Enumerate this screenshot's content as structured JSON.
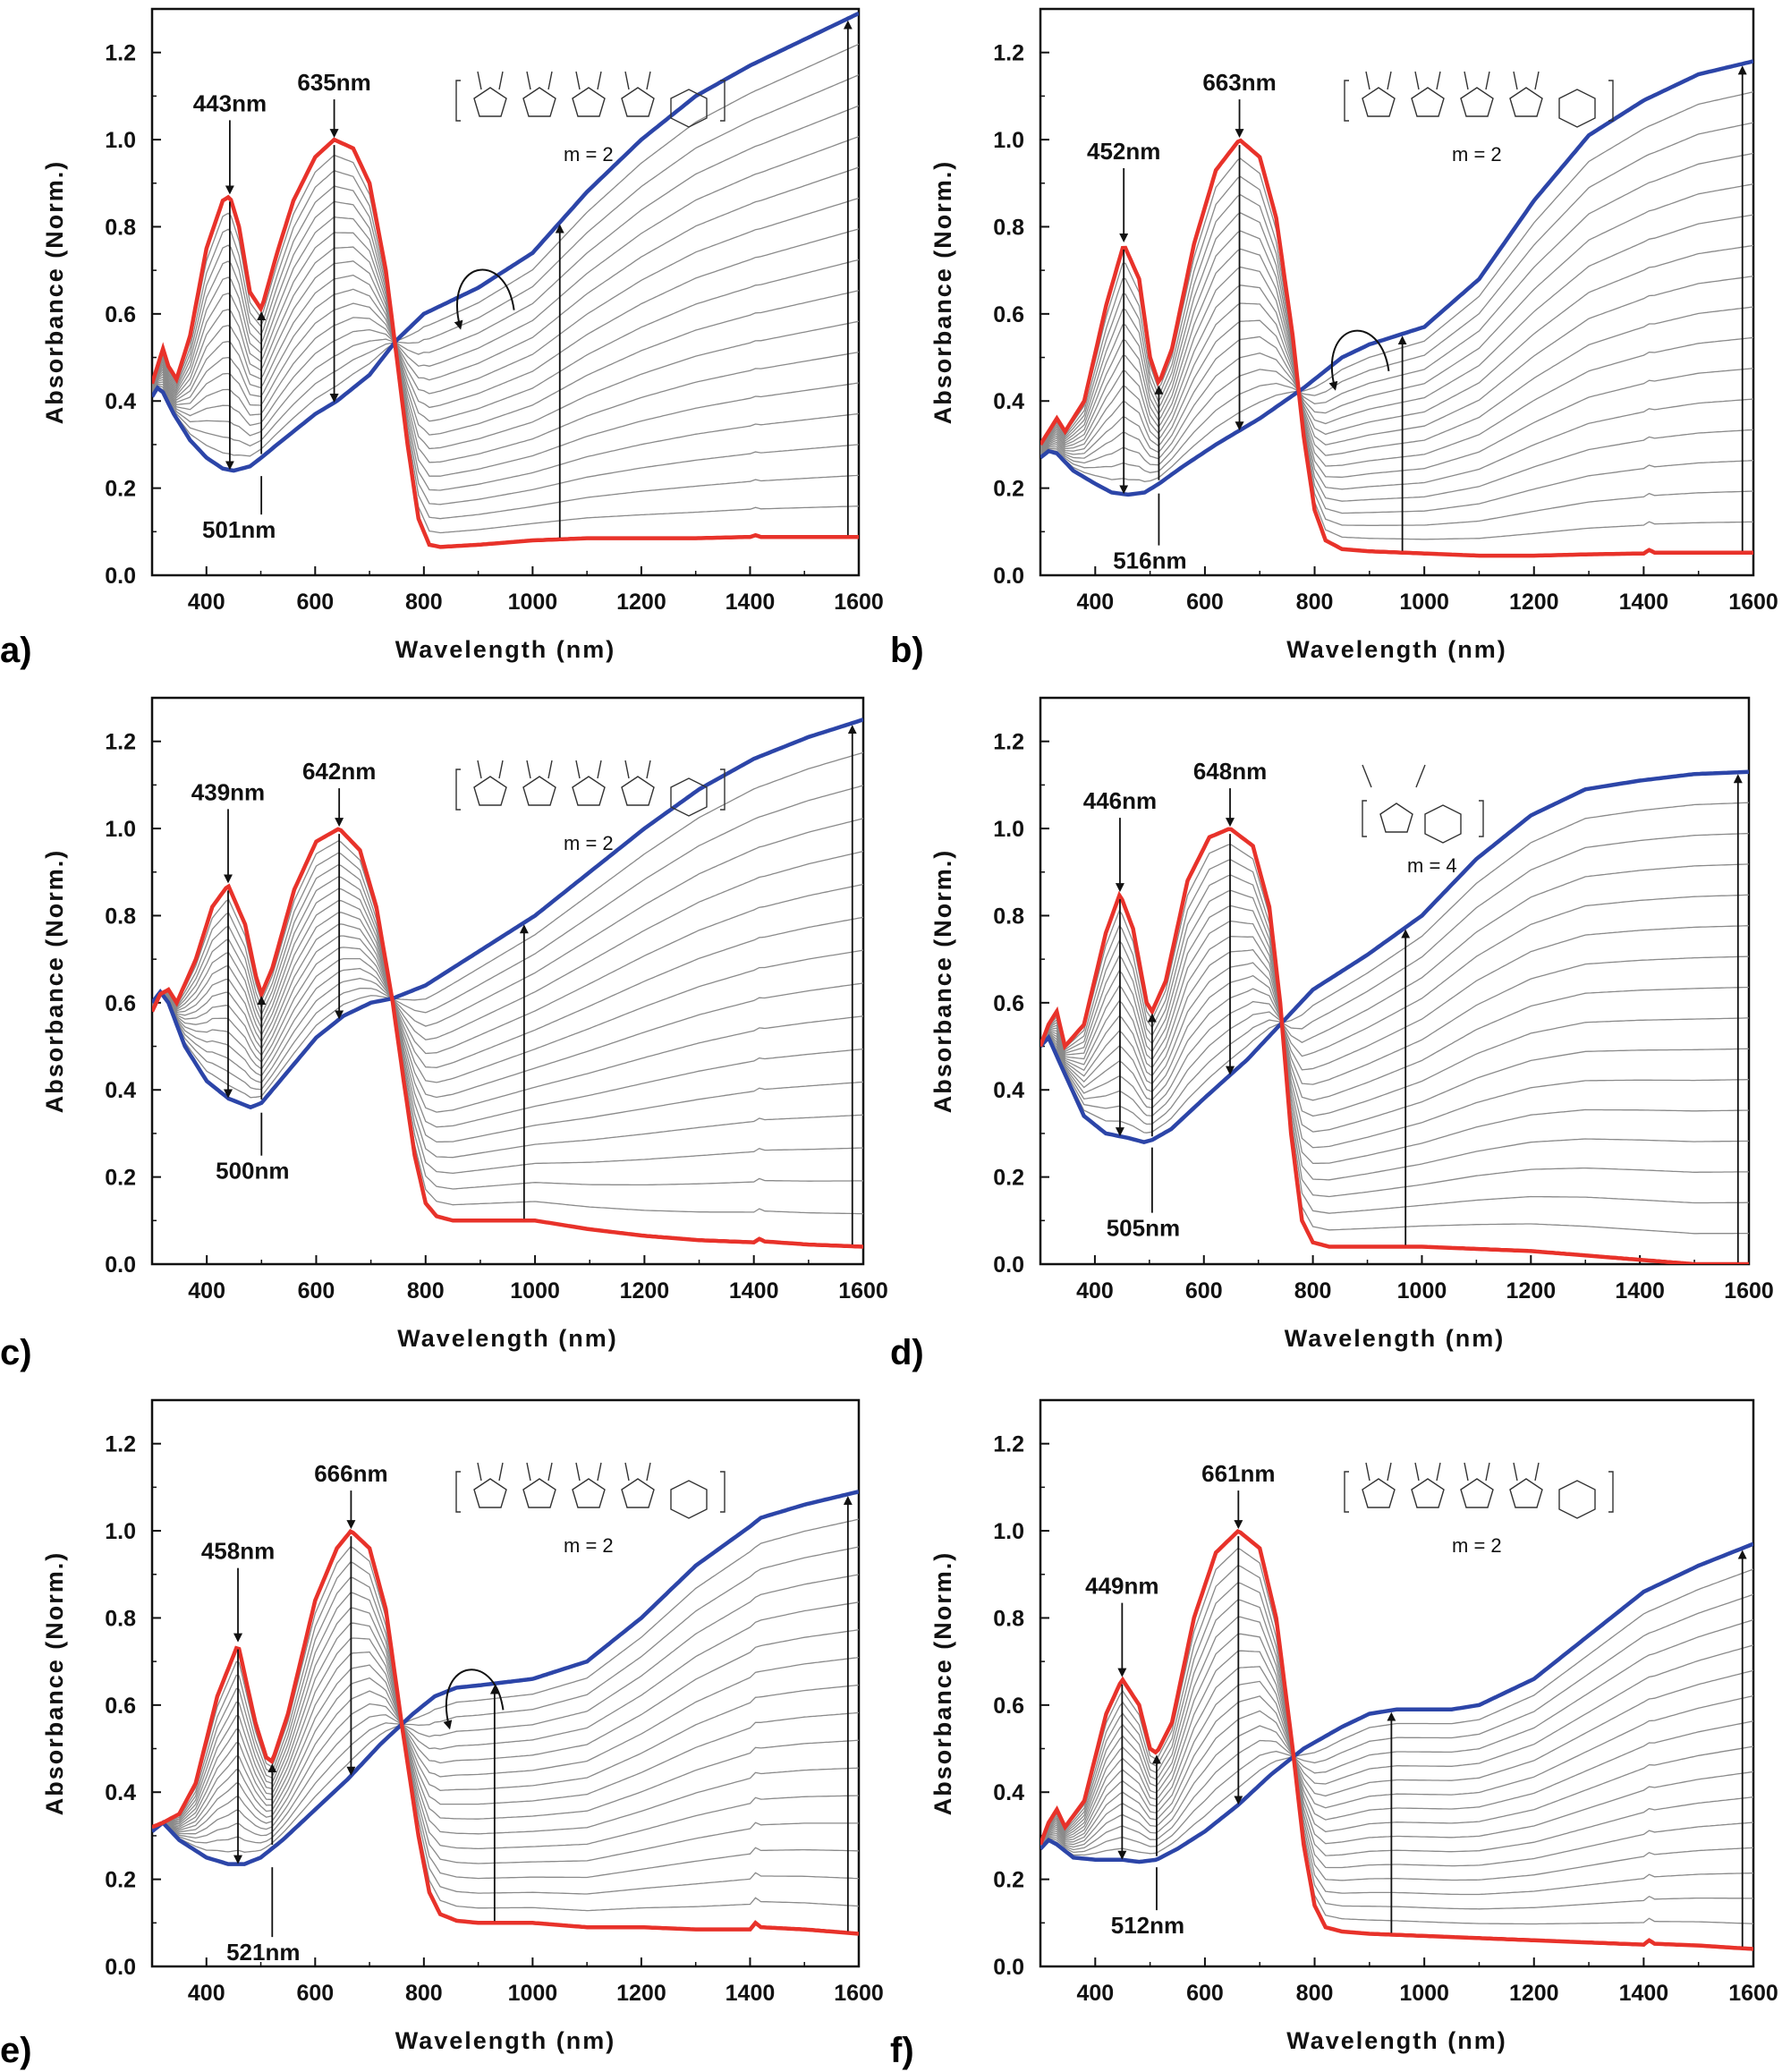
{
  "colors": {
    "start_curve": "#e8322a",
    "end_curve": "#2c45a8",
    "intermediate_curves": "#8a8a8a",
    "arrow": "#111111"
  },
  "chart_data": [
    {
      "panel_label": "a)",
      "type": "line",
      "xlabel": "Wavelength (nm)",
      "ylabel": "Absorbance (Norm.)",
      "xlim": [
        300,
        1600
      ],
      "ylim": [
        0.0,
        1.3
      ],
      "xticks": [
        "400",
        "600",
        "800",
        "1000",
        "1200",
        "1400",
        "1600"
      ],
      "yticks": [
        "0.0",
        "0.2",
        "0.4",
        "0.6",
        "0.8",
        "1.0",
        "1.2"
      ],
      "structure_label": "m = 2",
      "annotations": [
        {
          "text": "443nm",
          "x": 443,
          "y": 0.87
        },
        {
          "text": "635nm",
          "x": 635,
          "y": 1.0
        },
        {
          "text": "501nm",
          "x": 501,
          "y": 0.24
        }
      ],
      "series": [
        {
          "role": "start",
          "x": [
            300,
            310,
            320,
            330,
            345,
            370,
            400,
            430,
            443,
            460,
            480,
            501,
            530,
            560,
            600,
            635,
            670,
            700,
            730,
            750,
            770,
            790,
            810,
            830,
            900,
            1000,
            1100,
            1200,
            1300,
            1400,
            1410,
            1420,
            1500,
            1600
          ],
          "y": [
            0.44,
            0.48,
            0.52,
            0.48,
            0.45,
            0.55,
            0.75,
            0.86,
            0.87,
            0.8,
            0.65,
            0.61,
            0.74,
            0.86,
            0.96,
            1.0,
            0.98,
            0.9,
            0.7,
            0.5,
            0.3,
            0.13,
            0.07,
            0.065,
            0.07,
            0.08,
            0.085,
            0.085,
            0.085,
            0.088,
            0.092,
            0.088,
            0.088,
            0.088
          ]
        },
        {
          "role": "end",
          "x": [
            300,
            310,
            320,
            340,
            370,
            400,
            430,
            450,
            480,
            501,
            530,
            560,
            600,
            640,
            700,
            750,
            800,
            900,
            1000,
            1100,
            1200,
            1300,
            1400,
            1500,
            1600
          ],
          "y": [
            0.41,
            0.43,
            0.42,
            0.37,
            0.31,
            0.27,
            0.245,
            0.24,
            0.25,
            0.27,
            0.3,
            0.33,
            0.37,
            0.4,
            0.46,
            0.54,
            0.6,
            0.66,
            0.74,
            0.88,
            1.0,
            1.1,
            1.17,
            1.23,
            1.29
          ]
        },
        {
          "role": "intermediate",
          "count": 16
        }
      ]
    },
    {
      "panel_label": "b)",
      "type": "line",
      "xlabel": "Wavelength (nm)",
      "ylabel": "Absorbance (Norm.)",
      "xlim": [
        300,
        1600
      ],
      "ylim": [
        0.0,
        1.3
      ],
      "xticks": [
        "400",
        "600",
        "800",
        "1000",
        "1200",
        "1400",
        "1600"
      ],
      "yticks": [
        "0.0",
        "0.2",
        "0.4",
        "0.6",
        "0.8",
        "1.0",
        "1.2"
      ],
      "structure_label": "m = 2",
      "annotations": [
        {
          "text": "452nm",
          "x": 452,
          "y": 0.76
        },
        {
          "text": "663nm",
          "x": 663,
          "y": 1.0
        },
        {
          "text": "516nm",
          "x": 516,
          "y": 0.2
        }
      ],
      "series": [
        {
          "role": "start",
          "x": [
            300,
            315,
            330,
            345,
            380,
            420,
            452,
            480,
            500,
            516,
            540,
            580,
            620,
            663,
            700,
            730,
            760,
            780,
            800,
            820,
            850,
            900,
            1000,
            1100,
            1200,
            1300,
            1400,
            1410,
            1420,
            1500,
            1600
          ],
          "y": [
            0.3,
            0.33,
            0.36,
            0.33,
            0.4,
            0.62,
            0.76,
            0.68,
            0.5,
            0.44,
            0.52,
            0.76,
            0.93,
            1.0,
            0.96,
            0.82,
            0.55,
            0.32,
            0.15,
            0.08,
            0.06,
            0.055,
            0.05,
            0.045,
            0.045,
            0.048,
            0.05,
            0.058,
            0.052,
            0.052,
            0.052
          ]
        },
        {
          "role": "end",
          "x": [
            300,
            315,
            330,
            360,
            400,
            430,
            460,
            490,
            516,
            560,
            620,
            700,
            780,
            850,
            900,
            950,
            1000,
            1100,
            1200,
            1300,
            1400,
            1500,
            1600
          ],
          "y": [
            0.27,
            0.285,
            0.28,
            0.24,
            0.21,
            0.19,
            0.185,
            0.19,
            0.21,
            0.25,
            0.3,
            0.36,
            0.43,
            0.5,
            0.53,
            0.55,
            0.57,
            0.68,
            0.86,
            1.01,
            1.09,
            1.15,
            1.18
          ]
        },
        {
          "role": "intermediate",
          "count": 15
        }
      ]
    },
    {
      "panel_label": "c)",
      "type": "line",
      "xlabel": "Wavelength (nm)",
      "ylabel": "Absorbance (Norm.)",
      "xlim": [
        300,
        1600
      ],
      "ylim": [
        0.0,
        1.3
      ],
      "xticks": [
        "400",
        "600",
        "800",
        "1000",
        "1200",
        "1400",
        "1600"
      ],
      "yticks": [
        "0.0",
        "0.2",
        "0.4",
        "0.6",
        "0.8",
        "1.0",
        "1.2"
      ],
      "structure_label": "m = 2",
      "annotations": [
        {
          "text": "439nm",
          "x": 439,
          "y": 0.87
        },
        {
          "text": "642nm",
          "x": 642,
          "y": 1.0
        },
        {
          "text": "500nm",
          "x": 500,
          "y": 0.36
        }
      ],
      "series": [
        {
          "role": "start",
          "x": [
            300,
            315,
            330,
            345,
            380,
            410,
            439,
            470,
            490,
            500,
            520,
            560,
            600,
            642,
            680,
            710,
            740,
            760,
            780,
            800,
            820,
            850,
            900,
            1000,
            1100,
            1200,
            1300,
            1400,
            1410,
            1420,
            1500,
            1600
          ],
          "y": [
            0.58,
            0.62,
            0.63,
            0.6,
            0.7,
            0.82,
            0.87,
            0.78,
            0.66,
            0.62,
            0.68,
            0.86,
            0.97,
            1.0,
            0.95,
            0.82,
            0.6,
            0.42,
            0.25,
            0.14,
            0.11,
            0.1,
            0.1,
            0.1,
            0.08,
            0.065,
            0.055,
            0.05,
            0.058,
            0.052,
            0.045,
            0.04
          ]
        },
        {
          "role": "end",
          "x": [
            300,
            315,
            330,
            360,
            400,
            440,
            480,
            500,
            540,
            600,
            650,
            700,
            740,
            800,
            900,
            1000,
            1100,
            1200,
            1300,
            1400,
            1500,
            1600
          ],
          "y": [
            0.6,
            0.625,
            0.6,
            0.5,
            0.42,
            0.38,
            0.36,
            0.37,
            0.43,
            0.52,
            0.57,
            0.6,
            0.61,
            0.64,
            0.72,
            0.8,
            0.9,
            1.0,
            1.09,
            1.16,
            1.21,
            1.25
          ]
        },
        {
          "role": "intermediate",
          "count": 15
        }
      ]
    },
    {
      "panel_label": "d)",
      "type": "line",
      "xlabel": "Wavelength (nm)",
      "ylabel": "Absorbance (Norm.)",
      "xlim": [
        300,
        1600
      ],
      "ylim": [
        0.0,
        1.3
      ],
      "xticks": [
        "400",
        "600",
        "800",
        "1000",
        "1200",
        "1400",
        "1600"
      ],
      "yticks": [
        "0.0",
        "0.2",
        "0.4",
        "0.6",
        "0.8",
        "1.0",
        "1.2"
      ],
      "structure_label": "m = 4",
      "annotations": [
        {
          "text": "446nm",
          "x": 446,
          "y": 0.85
        },
        {
          "text": "648nm",
          "x": 648,
          "y": 1.0
        },
        {
          "text": "505nm",
          "x": 505,
          "y": 0.28
        }
      ],
      "series": [
        {
          "role": "start",
          "x": [
            300,
            315,
            330,
            345,
            380,
            420,
            446,
            470,
            495,
            505,
            530,
            570,
            610,
            648,
            690,
            720,
            740,
            760,
            780,
            800,
            830,
            900,
            1000,
            1100,
            1200,
            1300,
            1400,
            1500,
            1600
          ],
          "y": [
            0.5,
            0.55,
            0.58,
            0.5,
            0.55,
            0.76,
            0.85,
            0.77,
            0.6,
            0.58,
            0.65,
            0.88,
            0.98,
            1.0,
            0.96,
            0.82,
            0.6,
            0.3,
            0.1,
            0.05,
            0.04,
            0.04,
            0.04,
            0.035,
            0.03,
            0.02,
            0.01,
            0.0,
            0.0
          ]
        },
        {
          "role": "end",
          "x": [
            300,
            315,
            340,
            380,
            420,
            460,
            490,
            505,
            540,
            600,
            680,
            740,
            800,
            900,
            1000,
            1100,
            1200,
            1300,
            1400,
            1500,
            1600
          ],
          "y": [
            0.5,
            0.52,
            0.45,
            0.34,
            0.3,
            0.29,
            0.28,
            0.285,
            0.31,
            0.38,
            0.47,
            0.55,
            0.63,
            0.71,
            0.8,
            0.93,
            1.03,
            1.09,
            1.11,
            1.125,
            1.13
          ]
        },
        {
          "role": "intermediate",
          "count": 15
        }
      ]
    },
    {
      "panel_label": "e)",
      "type": "line",
      "xlabel": "Wavelength (nm)",
      "ylabel": "Absorbance (Norm.)",
      "xlim": [
        300,
        1600
      ],
      "ylim": [
        0.0,
        1.3
      ],
      "xticks": [
        "400",
        "600",
        "800",
        "1000",
        "1200",
        "1400",
        "1600"
      ],
      "yticks": [
        "0.0",
        "0.2",
        "0.4",
        "0.6",
        "0.8",
        "1.0",
        "1.2"
      ],
      "structure_label": "m = 2",
      "annotations": [
        {
          "text": "458nm",
          "x": 458,
          "y": 0.74
        },
        {
          "text": "666nm",
          "x": 666,
          "y": 1.0
        },
        {
          "text": "521nm",
          "x": 521,
          "y": 0.24
        }
      ],
      "series": [
        {
          "role": "start",
          "x": [
            300,
            320,
            350,
            380,
            420,
            458,
            490,
            510,
            521,
            550,
            600,
            640,
            666,
            700,
            730,
            760,
            790,
            810,
            830,
            860,
            900,
            1000,
            1100,
            1200,
            1300,
            1400,
            1410,
            1420,
            1500,
            1600
          ],
          "y": [
            0.32,
            0.33,
            0.35,
            0.42,
            0.62,
            0.74,
            0.56,
            0.48,
            0.47,
            0.58,
            0.84,
            0.96,
            1.0,
            0.96,
            0.82,
            0.55,
            0.3,
            0.17,
            0.12,
            0.105,
            0.1,
            0.1,
            0.09,
            0.09,
            0.085,
            0.085,
            0.1,
            0.09,
            0.085,
            0.075
          ]
        },
        {
          "role": "end",
          "x": [
            300,
            320,
            350,
            400,
            440,
            470,
            500,
            540,
            600,
            660,
            720,
            780,
            820,
            860,
            900,
            1000,
            1100,
            1200,
            1300,
            1400,
            1420,
            1500,
            1600
          ],
          "y": [
            0.31,
            0.33,
            0.29,
            0.25,
            0.235,
            0.235,
            0.25,
            0.29,
            0.36,
            0.43,
            0.51,
            0.58,
            0.62,
            0.64,
            0.645,
            0.66,
            0.7,
            0.8,
            0.92,
            1.01,
            1.03,
            1.06,
            1.09
          ]
        },
        {
          "role": "intermediate",
          "count": 15
        }
      ]
    },
    {
      "panel_label": "f)",
      "type": "line",
      "xlabel": "Wavelength (nm)",
      "ylabel": "Absorbance (Norm.)",
      "xlim": [
        300,
        1600
      ],
      "ylim": [
        0.0,
        1.3
      ],
      "xticks": [
        "400",
        "600",
        "800",
        "1000",
        "1200",
        "1400",
        "1600"
      ],
      "yticks": [
        "0.0",
        "0.2",
        "0.4",
        "0.6",
        "0.8",
        "1.0",
        "1.2"
      ],
      "structure_label": "m = 2",
      "annotations": [
        {
          "text": "449nm",
          "x": 449,
          "y": 0.66
        },
        {
          "text": "661nm",
          "x": 661,
          "y": 1.0
        },
        {
          "text": "512nm",
          "x": 512,
          "y": 0.24
        }
      ],
      "series": [
        {
          "role": "start",
          "x": [
            300,
            315,
            330,
            345,
            380,
            420,
            449,
            480,
            500,
            512,
            540,
            580,
            620,
            661,
            700,
            730,
            760,
            780,
            800,
            820,
            850,
            900,
            1000,
            1100,
            1200,
            1300,
            1400,
            1410,
            1420,
            1500,
            1600
          ],
          "y": [
            0.28,
            0.33,
            0.36,
            0.32,
            0.38,
            0.58,
            0.66,
            0.6,
            0.5,
            0.49,
            0.56,
            0.8,
            0.95,
            1.0,
            0.96,
            0.8,
            0.5,
            0.28,
            0.14,
            0.09,
            0.08,
            0.075,
            0.07,
            0.065,
            0.06,
            0.055,
            0.05,
            0.06,
            0.052,
            0.048,
            0.04
          ]
        },
        {
          "role": "end",
          "x": [
            300,
            315,
            330,
            360,
            400,
            449,
            480,
            512,
            550,
            600,
            660,
            720,
            780,
            850,
            900,
            950,
            1000,
            1050,
            1100,
            1200,
            1300,
            1400,
            1500,
            1600
          ],
          "y": [
            0.27,
            0.29,
            0.28,
            0.25,
            0.245,
            0.245,
            0.24,
            0.245,
            0.27,
            0.31,
            0.37,
            0.44,
            0.5,
            0.55,
            0.58,
            0.59,
            0.59,
            0.59,
            0.6,
            0.66,
            0.76,
            0.86,
            0.92,
            0.97
          ]
        },
        {
          "role": "intermediate",
          "count": 15
        }
      ]
    }
  ]
}
